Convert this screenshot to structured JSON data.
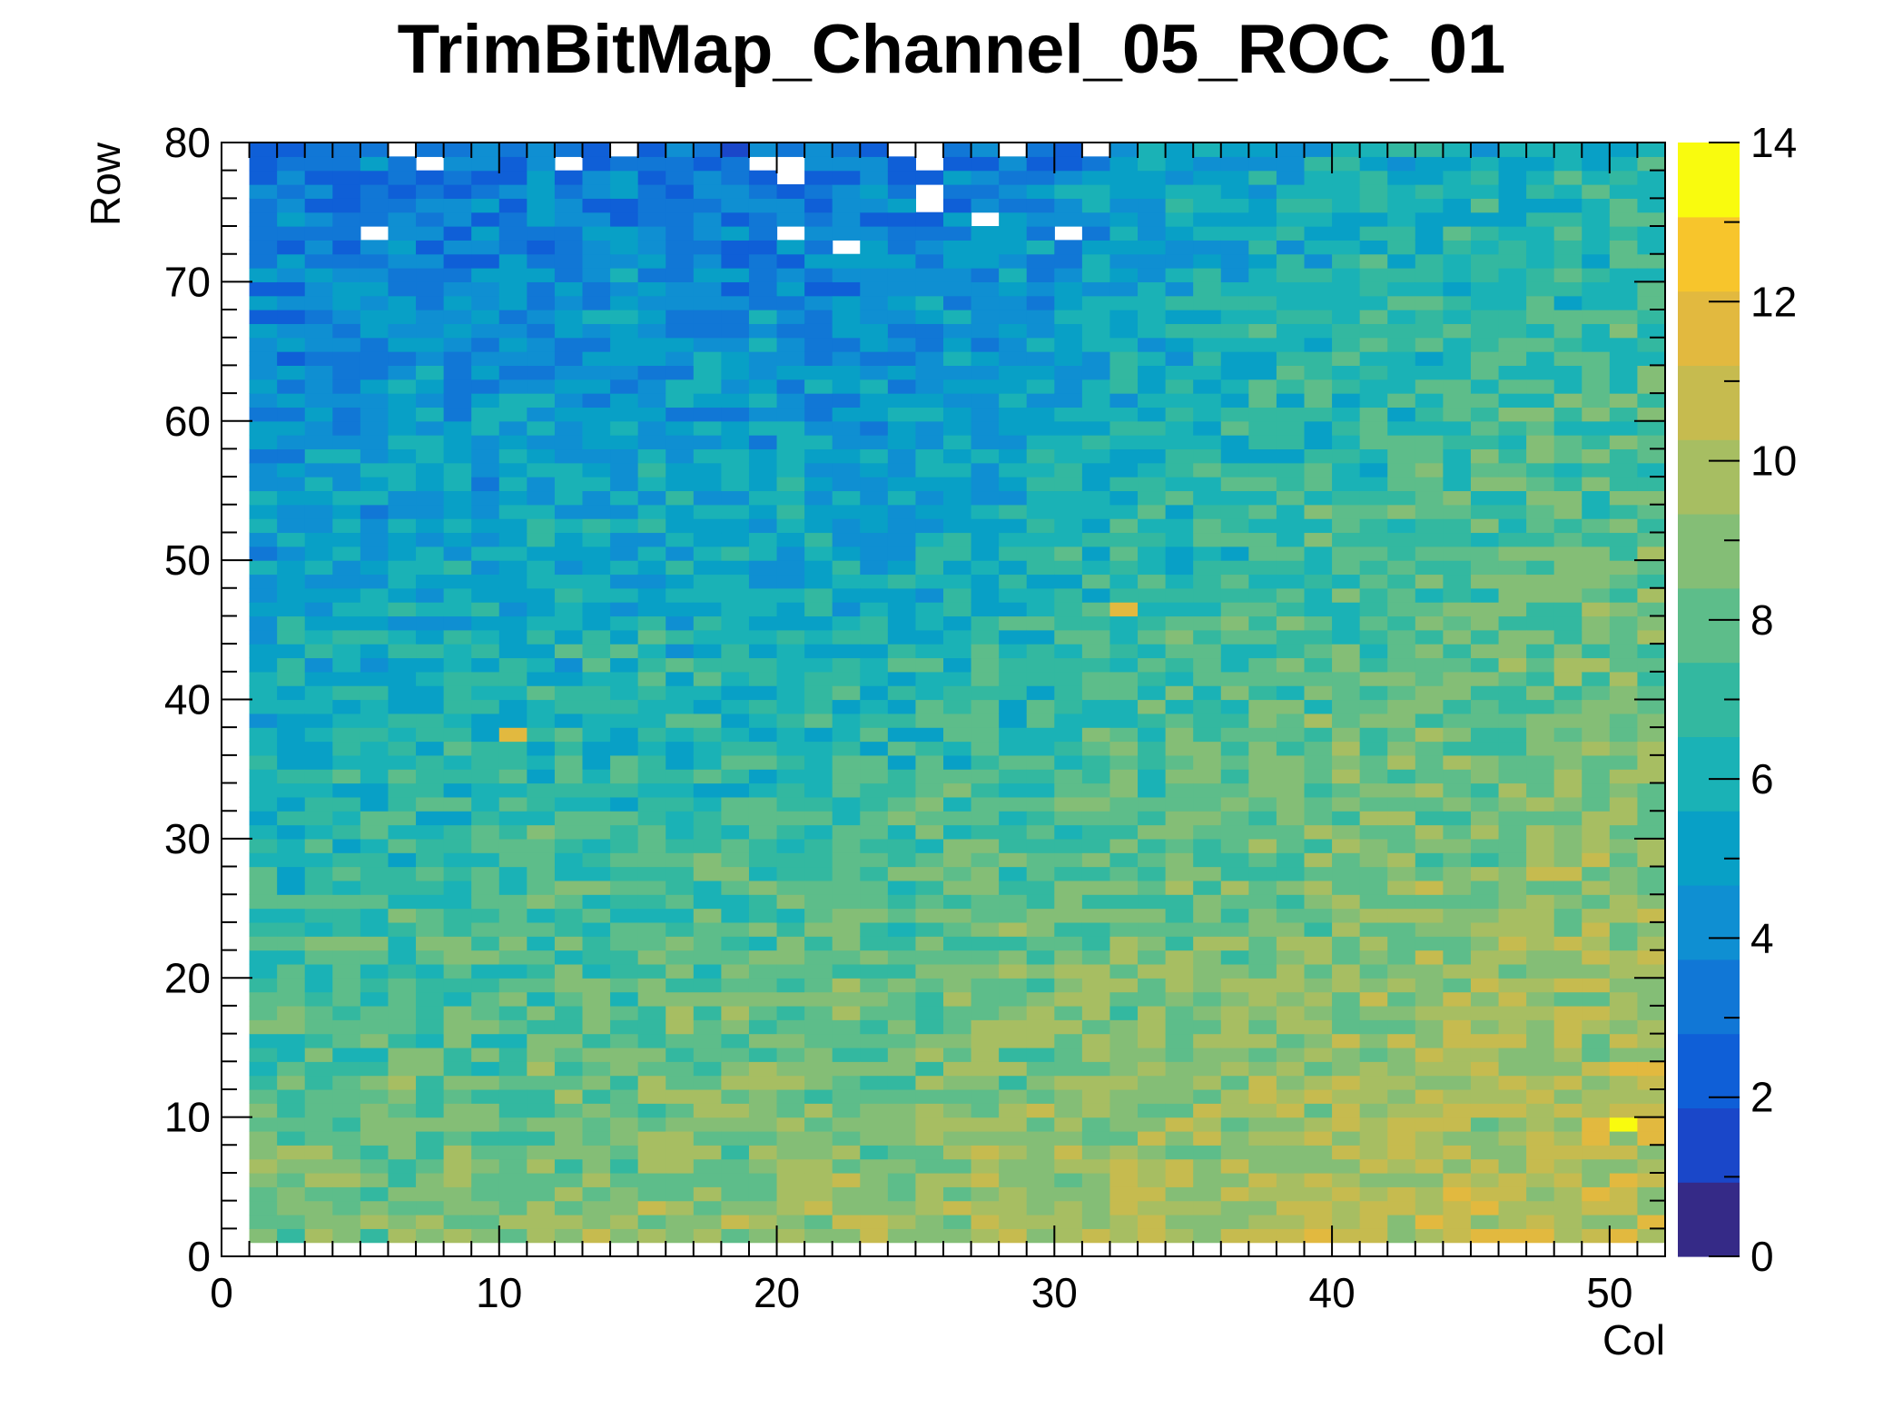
{
  "chart_data": {
    "type": "heatmap",
    "title": "TrimBitMap_Channel_05_ROC_01",
    "xlabel": "Col",
    "ylabel": "Row",
    "xlim": [
      0,
      52
    ],
    "ylim": [
      0,
      80
    ],
    "zlim": [
      0,
      14
    ],
    "x_ticks": [
      "0",
      "10",
      "20",
      "30",
      "40",
      "50"
    ],
    "y_ticks": [
      "0",
      "10",
      "20",
      "30",
      "40",
      "50",
      "60",
      "70",
      "80"
    ],
    "z_ticks": [
      "0",
      "2",
      "4",
      "6",
      "8",
      "10",
      "12",
      "14"
    ],
    "bins": {
      "cols": 52,
      "rows": 80,
      "col_range": [
        0,
        52
      ],
      "row_range": [
        0,
        80
      ]
    },
    "filled_cells": {
      "cols": [
        1,
        51
      ],
      "rows": [
        1,
        79
      ]
    },
    "trend": {
      "description_values": "approximate trim value per bin, estimated from colour",
      "bottom_left": 8.5,
      "bottom_right": 10.5,
      "top_left": 3,
      "top_right": 6.5,
      "row_gradient": "values decrease toward high rows, strongest near columns 20-30"
    },
    "notable_cells": [
      {
        "col": 50,
        "row": 9,
        "value": 14
      },
      {
        "col": 51,
        "row": 2,
        "value": 12
      },
      {
        "col": 32,
        "row": 46,
        "value": 12
      },
      {
        "col": 10,
        "row": 37,
        "value": 12
      }
    ],
    "empty_cells": [
      [
        6,
        79
      ],
      [
        7,
        78
      ],
      [
        12,
        78
      ],
      [
        14,
        79
      ],
      [
        19,
        78
      ],
      [
        20,
        78
      ],
      [
        20,
        77
      ],
      [
        24,
        79
      ],
      [
        25,
        79
      ],
      [
        25,
        78
      ],
      [
        25,
        76
      ],
      [
        25,
        75
      ],
      [
        28,
        79
      ],
      [
        31,
        79
      ],
      [
        5,
        73
      ],
      [
        20,
        73
      ],
      [
        22,
        72
      ],
      [
        27,
        74
      ],
      [
        30,
        73
      ]
    ],
    "palette": [
      "#352a87",
      "#1a47c9",
      "#0f5fd7",
      "#1177d6",
      "#0f8fd2",
      "#08a0c6",
      "#1ab2b6",
      "#33b8a0",
      "#5dbd8a",
      "#84be76",
      "#a7be62",
      "#c6bb4f",
      "#e2b93f",
      "#f7c52c",
      "#f9fb0e"
    ]
  }
}
